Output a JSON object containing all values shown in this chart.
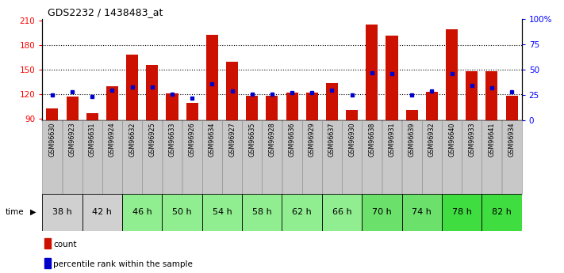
{
  "title": "GDS2232 / 1438483_at",
  "samples": [
    "GSM96630",
    "GSM96923",
    "GSM96631",
    "GSM96924",
    "GSM96632",
    "GSM96925",
    "GSM96633",
    "GSM96926",
    "GSM96634",
    "GSM96927",
    "GSM96635",
    "GSM96928",
    "GSM96636",
    "GSM96929",
    "GSM96637",
    "GSM96930",
    "GSM96638",
    "GSM96931",
    "GSM96639",
    "GSM96932",
    "GSM96640",
    "GSM96933",
    "GSM96641",
    "GSM96934"
  ],
  "count": [
    102,
    117,
    97,
    130,
    168,
    156,
    121,
    109,
    193,
    160,
    118,
    118,
    122,
    122,
    133,
    100,
    205,
    192,
    100,
    123,
    200,
    148,
    148,
    118
  ],
  "percentile": [
    25,
    28,
    23,
    30,
    33,
    33,
    26,
    22,
    36,
    29,
    26,
    26,
    27,
    27,
    30,
    25,
    47,
    46,
    25,
    29,
    46,
    34,
    32,
    28
  ],
  "time_groups": [
    "38 h",
    "42 h",
    "46 h",
    "50 h",
    "54 h",
    "58 h",
    "62 h",
    "66 h",
    "70 h",
    "74 h",
    "78 h",
    "82 h"
  ],
  "time_group_colors": [
    "#d0d0d0",
    "#d0d0d0",
    "#90ee90",
    "#90ee90",
    "#90ee90",
    "#90ee90",
    "#90ee90",
    "#90ee90",
    "#b0f0b0",
    "#b0f0b0",
    "#60ee60",
    "#60ee60"
  ],
  "ylim_left": [
    88,
    212
  ],
  "ylim_right": [
    0,
    100
  ],
  "yticks_left": [
    90,
    120,
    150,
    180,
    210
  ],
  "yticks_right": [
    0,
    25,
    50,
    75,
    100
  ],
  "bar_color": "#cc1100",
  "dot_color": "#0000cc",
  "bg_color": "#ffffff",
  "sample_bg": "#c8c8c8",
  "legend_count": "count",
  "legend_pct": "percentile rank within the sample"
}
